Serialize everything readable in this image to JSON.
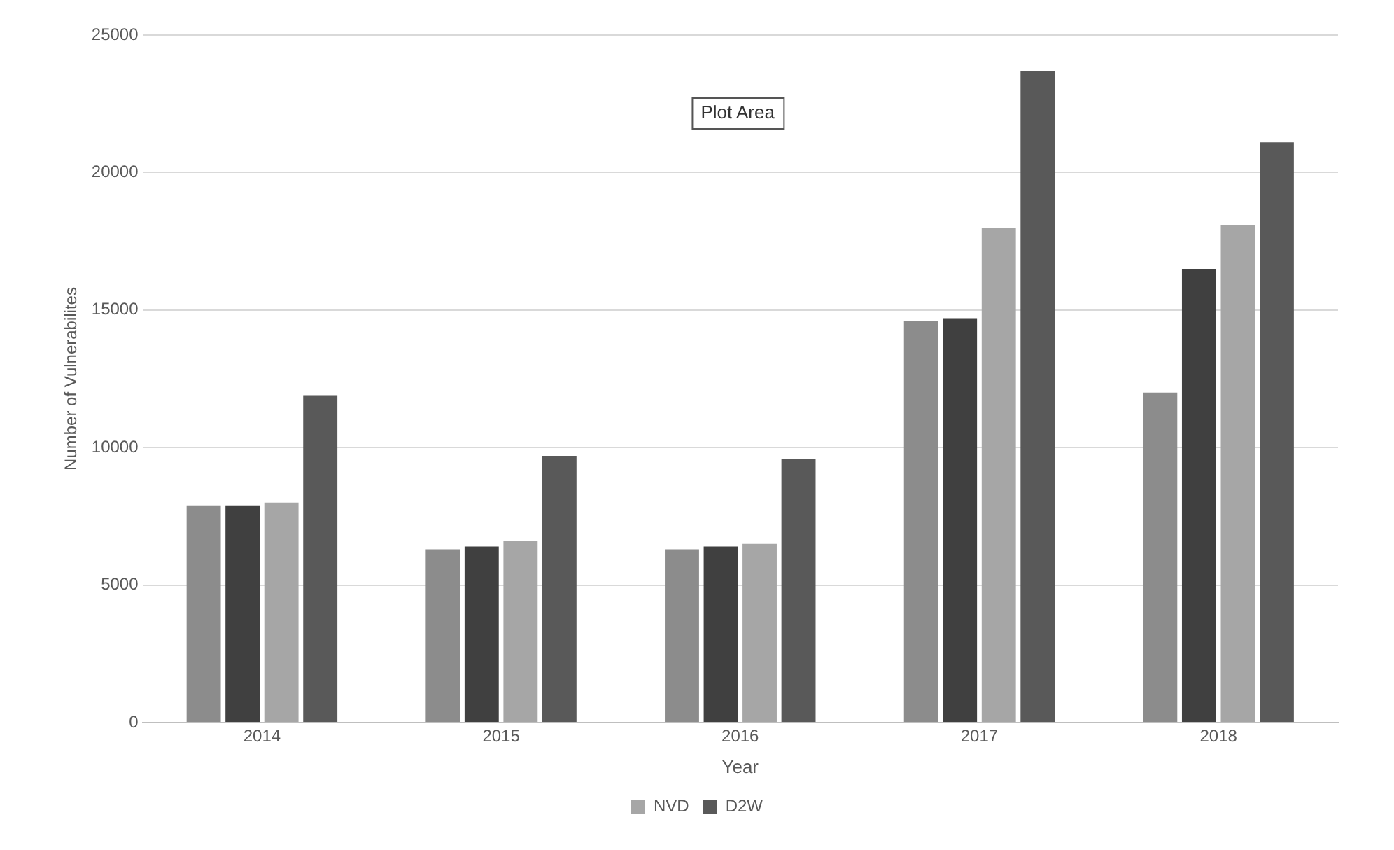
{
  "chart_data": {
    "type": "bar",
    "xlabel": "Year",
    "ylabel": "Number of Vulnerabilites",
    "categories": [
      "2014",
      "2015",
      "2016",
      "2017",
      "2018"
    ],
    "series": [
      {
        "color": "#8c8c8c",
        "values": [
          7900,
          6300,
          6300,
          14600,
          12000
        ]
      },
      {
        "color": "#404040",
        "values": [
          7900,
          6400,
          6400,
          14700,
          16500
        ]
      },
      {
        "name": "NVD",
        "color": "#a6a6a6",
        "values": [
          8000,
          6600,
          6500,
          18000,
          18100
        ]
      },
      {
        "name": "D2W",
        "color": "#595959",
        "values": [
          11900,
          9700,
          9600,
          23700,
          21100
        ]
      }
    ],
    "ylim": [
      0,
      25000
    ],
    "yticks": [
      0,
      5000,
      10000,
      15000,
      20000,
      25000
    ],
    "grid": "y",
    "legend": "bottom",
    "annotations": [
      "Plot Area"
    ]
  }
}
